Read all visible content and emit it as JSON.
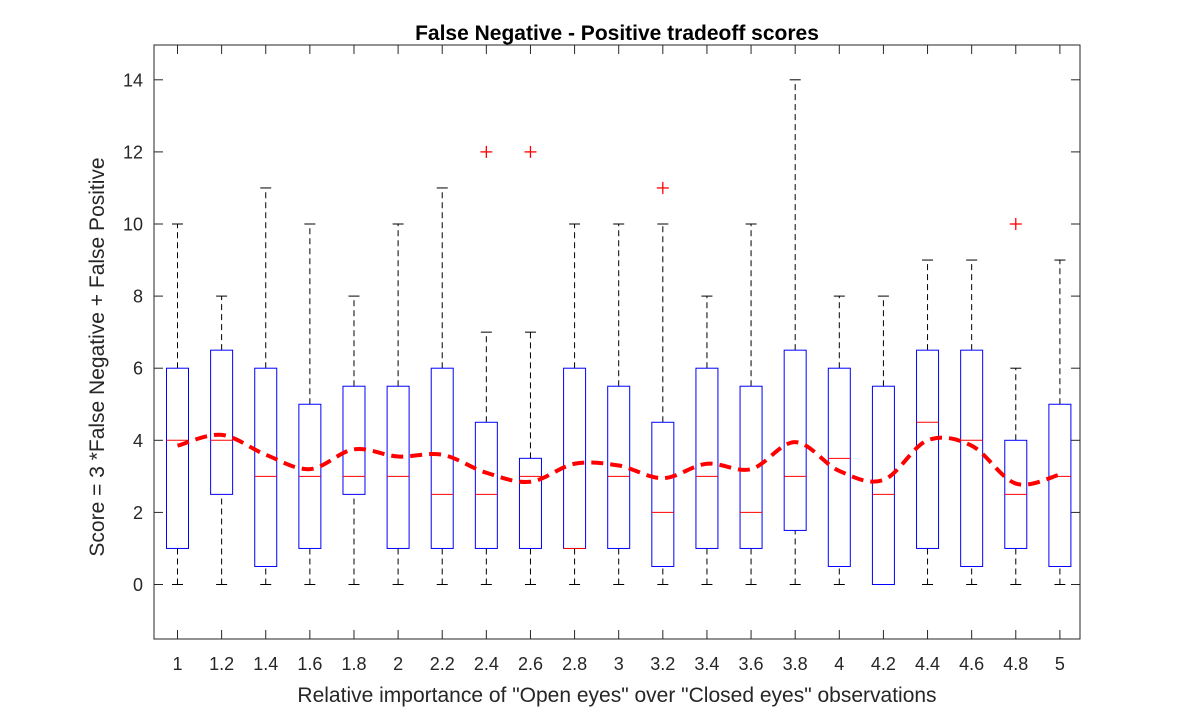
{
  "chart_data": {
    "type": "box",
    "title": "False Negative - Positive tradeoff scores",
    "xlabel": "Relative importance of \"Open eyes\" over \"Closed eyes\" observations",
    "ylabel": "Score = 3 *False Negative + False Positive",
    "ylim": [
      -1.5,
      15
    ],
    "yticks": [
      0,
      2,
      4,
      6,
      8,
      10,
      12,
      14
    ],
    "categories": [
      "1",
      "1.2",
      "1.4",
      "1.6",
      "1.8",
      "2",
      "2.2",
      "2.4",
      "2.6",
      "2.8",
      "3",
      "3.2",
      "3.4",
      "3.6",
      "3.8",
      "4",
      "4.2",
      "4.4",
      "4.6",
      "4.8",
      "5"
    ],
    "boxes": [
      {
        "lower_whisker": 0,
        "q1": 1,
        "median": 4,
        "q3": 6,
        "upper_whisker": 10,
        "outliers": []
      },
      {
        "lower_whisker": 0,
        "q1": 2.5,
        "median": 4,
        "q3": 6.5,
        "upper_whisker": 8,
        "outliers": []
      },
      {
        "lower_whisker": 0,
        "q1": 0.5,
        "median": 3,
        "q3": 6,
        "upper_whisker": 11,
        "outliers": []
      },
      {
        "lower_whisker": 0,
        "q1": 1,
        "median": 3,
        "q3": 5,
        "upper_whisker": 10,
        "outliers": []
      },
      {
        "lower_whisker": 0,
        "q1": 2.5,
        "median": 3,
        "q3": 5.5,
        "upper_whisker": 8,
        "outliers": []
      },
      {
        "lower_whisker": 0,
        "q1": 1,
        "median": 3,
        "q3": 5.5,
        "upper_whisker": 10,
        "outliers": []
      },
      {
        "lower_whisker": 0,
        "q1": 1,
        "median": 2.5,
        "q3": 6,
        "upper_whisker": 11,
        "outliers": []
      },
      {
        "lower_whisker": 0,
        "q1": 1,
        "median": 2.5,
        "q3": 4.5,
        "upper_whisker": 7,
        "outliers": [
          12
        ]
      },
      {
        "lower_whisker": 0,
        "q1": 1,
        "median": 3,
        "q3": 3.5,
        "upper_whisker": 7,
        "outliers": [
          12
        ]
      },
      {
        "lower_whisker": 0,
        "q1": 1,
        "median": 1,
        "q3": 6,
        "upper_whisker": 10,
        "outliers": []
      },
      {
        "lower_whisker": 0,
        "q1": 1,
        "median": 3,
        "q3": 5.5,
        "upper_whisker": 10,
        "outliers": []
      },
      {
        "lower_whisker": 0,
        "q1": 0.5,
        "median": 2,
        "q3": 4.5,
        "upper_whisker": 10,
        "outliers": [
          11
        ]
      },
      {
        "lower_whisker": 0,
        "q1": 1,
        "median": 3,
        "q3": 6,
        "upper_whisker": 8,
        "outliers": []
      },
      {
        "lower_whisker": 0,
        "q1": 1,
        "median": 2,
        "q3": 5.5,
        "upper_whisker": 10,
        "outliers": []
      },
      {
        "lower_whisker": 0,
        "q1": 1.5,
        "median": 3,
        "q3": 6.5,
        "upper_whisker": 14,
        "outliers": []
      },
      {
        "lower_whisker": 0,
        "q1": 0.5,
        "median": 3.5,
        "q3": 6,
        "upper_whisker": 8,
        "outliers": []
      },
      {
        "lower_whisker": 0,
        "q1": 0,
        "median": 2.5,
        "q3": 5.5,
        "upper_whisker": 8,
        "outliers": []
      },
      {
        "lower_whisker": 0,
        "q1": 1,
        "median": 4.5,
        "q3": 6.5,
        "upper_whisker": 9,
        "outliers": []
      },
      {
        "lower_whisker": 0,
        "q1": 0.5,
        "median": 4,
        "q3": 6.5,
        "upper_whisker": 9,
        "outliers": []
      },
      {
        "lower_whisker": 0,
        "q1": 1,
        "median": 2.5,
        "q3": 4,
        "upper_whisker": 6,
        "outliers": [
          10
        ]
      },
      {
        "lower_whisker": 0,
        "q1": 0.5,
        "median": 3,
        "q3": 5,
        "upper_whisker": 9,
        "outliers": []
      }
    ],
    "mean_line": [
      3.85,
      4.15,
      3.6,
      3.2,
      3.75,
      3.55,
      3.6,
      3.1,
      2.85,
      3.35,
      3.3,
      2.95,
      3.35,
      3.2,
      3.95,
      3.15,
      2.9,
      4.0,
      3.85,
      2.8,
      3.05
    ],
    "colors": {
      "box": "#0000ff",
      "median": "#ff0000",
      "mean_line": "#ff0000",
      "outlier": "#ff0000",
      "whisker": "#000000",
      "axis": "#262626"
    },
    "grid": false,
    "legend": "none"
  }
}
